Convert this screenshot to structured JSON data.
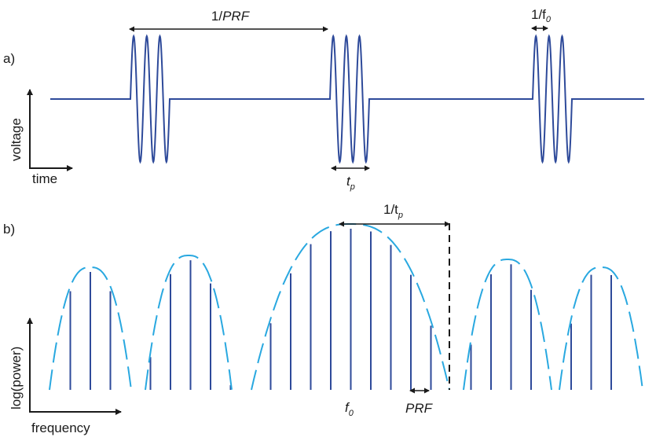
{
  "panel_a": {
    "label": "a)",
    "y_axis_label": "voltage",
    "x_axis_label": "time",
    "pri_label_prefix": "1/",
    "pri_label_var": "PRF",
    "period_label_prefix": "1/f",
    "period_label_sub": "0",
    "pulse_width_label": "t",
    "pulse_width_sub": "p",
    "cycles_per_pulse": 3,
    "pulse_count": 3
  },
  "panel_b": {
    "label": "b)",
    "y_axis_label": "log(power)",
    "x_axis_label": "frequency",
    "center_label": "f",
    "center_sub": "0",
    "lobe_width_prefix": "1/t",
    "lobe_width_sub": "p",
    "line_spacing_label": "PRF",
    "lobe_count": 5
  },
  "colors": {
    "signal": "#2e4a9a",
    "envelope": "#29a8e0",
    "annotation": "#1a1a1a"
  }
}
